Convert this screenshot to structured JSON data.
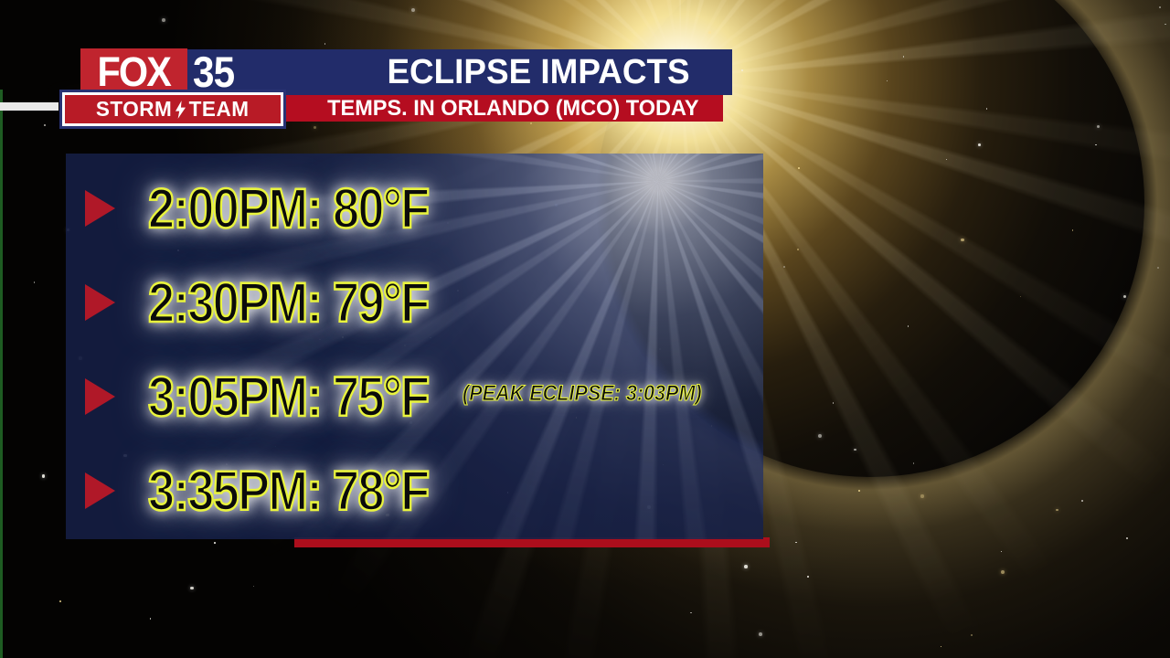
{
  "branding": {
    "network": "FOX",
    "channel_number": "35",
    "team_word1": "STORM",
    "team_word2": "TEAM"
  },
  "header": {
    "title": "ECLIPSE IMPACTS",
    "subtitle": "TEMPS. IN ORLANDO (MCO) TODAY"
  },
  "panel": {
    "rows": [
      {
        "time": "2:00PM",
        "temp": "80°F",
        "label": "2:00PM: 80°F"
      },
      {
        "time": "2:30PM",
        "temp": "79°F",
        "label": "2:30PM: 79°F"
      },
      {
        "time": "3:05PM",
        "temp": "75°F",
        "label": "3:05PM: 75°F",
        "note": "(PEAK ECLIPSE: 3:03PM)"
      },
      {
        "time": "3:35PM",
        "temp": "78°F",
        "label": "3:35PM: 78°F"
      }
    ]
  },
  "icons": {
    "bullet": "right-triangle-icon",
    "bolt": "lightning-bolt-icon"
  },
  "colors": {
    "header_blue": "#222c6a",
    "fox_red": "#c0242e",
    "subtitle_red": "#b50d20",
    "storm_red": "#b81b26",
    "bullet_red": "#b01828",
    "panel_navy": "#151e44",
    "highlight_yellow": "#e9f43d",
    "accent_strip_red": "#ac0e1c"
  }
}
